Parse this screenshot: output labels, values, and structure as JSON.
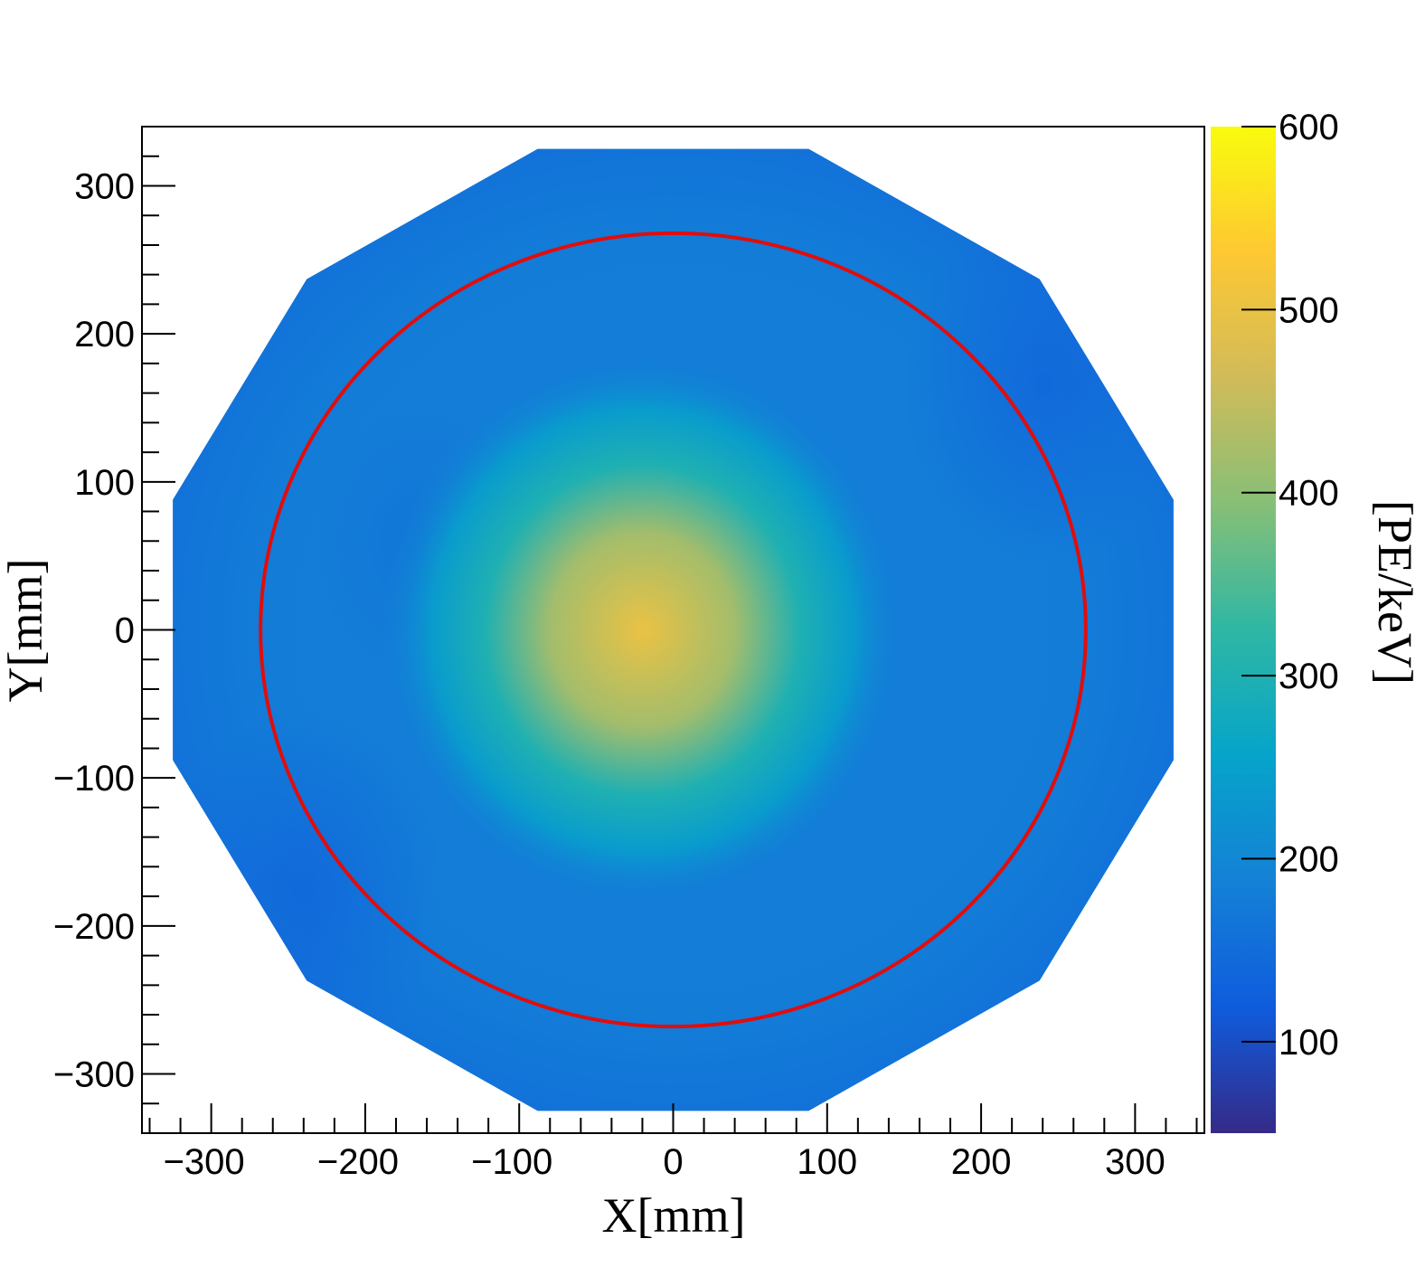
{
  "chart_data": {
    "type": "heatmap",
    "xlabel": "X[mm]",
    "ylabel": "Y[mm]",
    "zlabel": "[PE/keV]",
    "xlim": [
      -345,
      345
    ],
    "ylim": [
      -340,
      340
    ],
    "zlim": [
      50,
      600
    ],
    "x_ticks": [
      -300,
      -200,
      -100,
      0,
      100,
      200,
      300
    ],
    "y_ticks": [
      -300,
      -200,
      -100,
      0,
      100,
      200,
      300
    ],
    "z_ticks": [
      100,
      200,
      300,
      400,
      500,
      600
    ],
    "x_tick_labels": [
      "−300",
      "−200",
      "−100",
      "0",
      "100",
      "200",
      "300"
    ],
    "y_tick_labels": [
      "−300",
      "−200",
      "−100",
      "0",
      "100",
      "200",
      "300"
    ],
    "z_tick_labels": [
      "100",
      "200",
      "300",
      "400",
      "500",
      "600"
    ],
    "colormap": "parula",
    "colormap_stops": [
      "#352a87",
      "#0f5cdd",
      "#1481d6",
      "#06a4ca",
      "#2eb7a4",
      "#87bf77",
      "#d1bb59",
      "#fec832",
      "#f9fb0e"
    ],
    "region": {
      "shape": "dodecagon",
      "vertices": [
        [
          -88,
          325
        ],
        [
          88,
          325
        ],
        [
          238,
          237
        ],
        [
          325,
          88
        ],
        [
          325,
          -88
        ],
        [
          238,
          -237
        ],
        [
          88,
          -325
        ],
        [
          -88,
          -325
        ],
        [
          -238,
          -237
        ],
        [
          -325,
          -88
        ],
        [
          -325,
          88
        ],
        [
          -238,
          237
        ]
      ]
    },
    "field": {
      "background_value": 180,
      "edge_value": 150,
      "peak": {
        "x": -30,
        "y": 0,
        "value": 520
      },
      "peak_radius": 55,
      "low_spots": [
        {
          "x": -165,
          "y": 60,
          "value": 165
        },
        {
          "x": 240,
          "y": 165,
          "value": 140
        },
        {
          "x": -240,
          "y": -175,
          "value": 140
        }
      ]
    },
    "circle": {
      "center": [
        0,
        0
      ],
      "radius": 268,
      "color": "#e00d0d"
    }
  }
}
